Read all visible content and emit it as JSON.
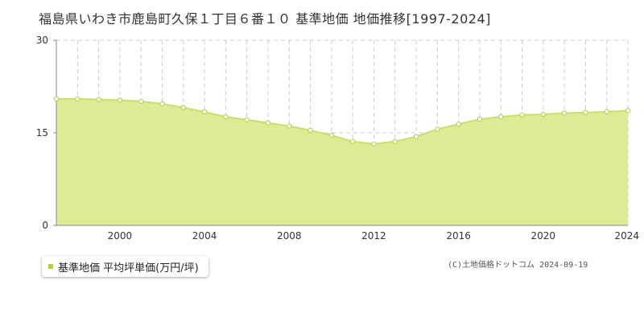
{
  "title": "福島県いわき市鹿島町久保１丁目６番１０ 基準地価 地価推移[1997-2024]",
  "credit": "(C)土地価格ドットコム 2024-09-19",
  "colors": {
    "fill": "#dcec95",
    "line": "#c8e06c",
    "point_stroke": "#b6d455",
    "grid": "#cccccc",
    "axis": "#888888",
    "legend_swatch": "#b5d334"
  },
  "chart_data": {
    "type": "area",
    "title": "福島県いわき市鹿島町久保１丁目６番１０ 基準地価 地価推移[1997-2024]",
    "xlabel": "",
    "ylabel": "",
    "xlim": [
      1997,
      2024
    ],
    "ylim": [
      0,
      30
    ],
    "yticks": [
      0,
      15,
      30
    ],
    "xticks": [
      2000,
      2004,
      2008,
      2012,
      2016,
      2020,
      2024
    ],
    "grid": true,
    "legend_placement": "bottom-left",
    "series": [
      {
        "name": "基準地価 平均坪単価(万円/坪)",
        "x": [
          1997,
          1998,
          1999,
          2000,
          2001,
          2002,
          2003,
          2004,
          2005,
          2006,
          2007,
          2008,
          2009,
          2010,
          2011,
          2012,
          2013,
          2014,
          2015,
          2016,
          2017,
          2018,
          2019,
          2020,
          2021,
          2022,
          2023,
          2024
        ],
        "values": [
          20.5,
          20.5,
          20.4,
          20.3,
          20.1,
          19.7,
          19.1,
          18.4,
          17.6,
          17.1,
          16.6,
          16.1,
          15.4,
          14.6,
          13.6,
          13.2,
          13.6,
          14.4,
          15.6,
          16.4,
          17.2,
          17.6,
          17.9,
          18.0,
          18.2,
          18.3,
          18.4,
          18.6
        ]
      }
    ]
  }
}
